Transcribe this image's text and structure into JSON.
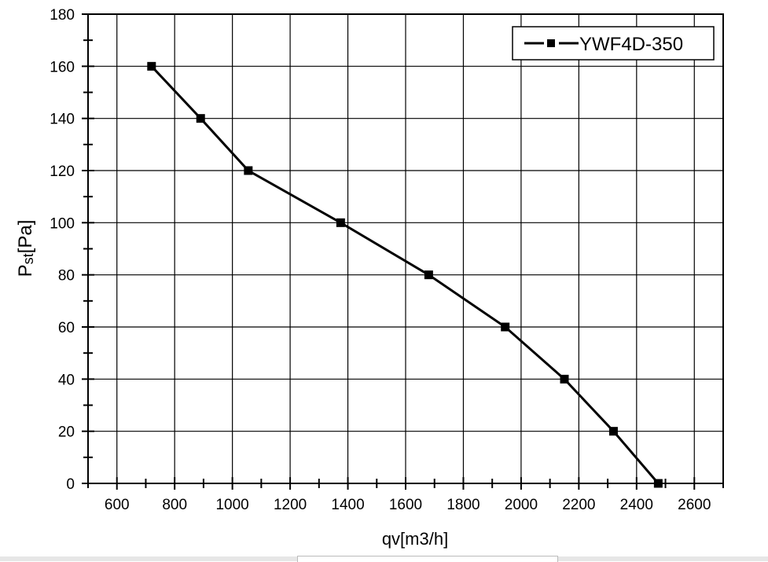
{
  "chart_data": {
    "type": "line",
    "title": "",
    "xlabel": "qv[m3/h]",
    "ylabel_main": "P",
    "ylabel_sub": "st",
    "ylabel_tail": "[Pa]",
    "xlim": [
      500,
      2700
    ],
    "ylim": [
      0,
      180
    ],
    "xticks": [
      600,
      800,
      1000,
      1200,
      1400,
      1600,
      1800,
      2000,
      2200,
      2400,
      2600
    ],
    "yticks": [
      0,
      20,
      40,
      60,
      80,
      100,
      120,
      140,
      160,
      180
    ],
    "grid": true,
    "legend_position": "top-right",
    "series": [
      {
        "name": "YWF4D-350",
        "color": "#000000",
        "marker": "square",
        "x": [
          720,
          890,
          1055,
          1375,
          1680,
          1945,
          2150,
          2320,
          2475
        ],
        "y": [
          160,
          140,
          120,
          100,
          80,
          60,
          40,
          20,
          0
        ]
      }
    ]
  }
}
